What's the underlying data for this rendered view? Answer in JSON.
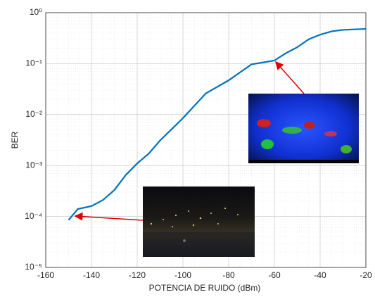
{
  "chart_data": {
    "type": "line",
    "x_label": "POTENCIA DE RUIDO (dBm)",
    "y_label": "BER",
    "x": [
      -150,
      -146,
      -140,
      -135,
      -130,
      -125,
      -120,
      -115,
      -110,
      -100,
      -90,
      -80,
      -70,
      -60,
      -55,
      -50,
      -45,
      -40,
      -35,
      -30,
      -20
    ],
    "series": [
      {
        "name": "BER",
        "color": "#0072bd",
        "values": [
          8.5e-05,
          0.00014,
          0.00016,
          0.00021,
          0.00033,
          0.00065,
          0.0011,
          0.0017,
          0.0031,
          0.0085,
          0.026,
          0.047,
          0.097,
          0.115,
          0.16,
          0.21,
          0.3,
          0.37,
          0.43,
          0.46,
          0.48
        ]
      }
    ],
    "xlim": [
      -160,
      -20
    ],
    "xticks": [
      -160,
      -140,
      -120,
      -100,
      -80,
      -60,
      -40,
      -20
    ],
    "ylim": [
      1e-05,
      1
    ],
    "log_y": true,
    "yticks": [
      {
        "value": 1e-05,
        "label": "10⁻⁵"
      },
      {
        "value": 0.0001,
        "label": "10⁻⁴"
      },
      {
        "value": 0.001,
        "label": "10⁻³"
      },
      {
        "value": 0.01,
        "label": "10⁻²"
      },
      {
        "value": 0.1,
        "label": "10⁻¹"
      },
      {
        "value": 1,
        "label": "10⁰"
      }
    ],
    "grid": true
  }
}
